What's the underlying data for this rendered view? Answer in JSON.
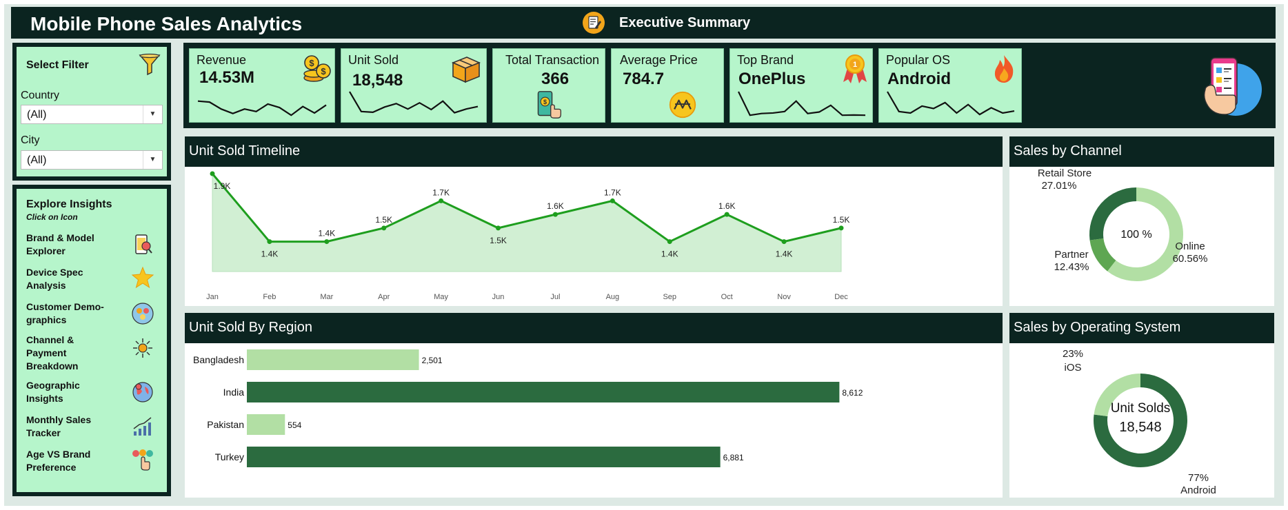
{
  "header": {
    "title": "Mobile Phone Sales Analytics",
    "nav_label": "Executive Summary",
    "icon": "report-icon"
  },
  "filters": {
    "title": "Select Filter",
    "icon": "funnel-icon",
    "country_label": "Country",
    "country_value": "(All)",
    "city_label": "City",
    "city_value": "(All)"
  },
  "insights": {
    "title": "Explore Insights",
    "subtitle": "Click on Icon",
    "items": [
      {
        "label": "Brand & Model Explorer",
        "icon": "phone-search-icon"
      },
      {
        "label": "Device Spec Analysis",
        "icon": "star-icon"
      },
      {
        "label": "Customer Demo-graphics",
        "icon": "people-icon"
      },
      {
        "label": "Channel & Payment Breakdown",
        "icon": "network-icon"
      },
      {
        "label": "Geographic Insights",
        "icon": "globe-pin-icon"
      },
      {
        "label": "Monthly Sales Tracker",
        "icon": "growth-chart-icon"
      },
      {
        "label": "Age VS Brand Preference",
        "icon": "touch-icon"
      }
    ]
  },
  "kpis": {
    "revenue": {
      "label": "Revenue",
      "value": "14.53M",
      "icon": "coins-icon",
      "spark": [
        0.62,
        0.58,
        0.3,
        0.12,
        0.3,
        0.2,
        0.5,
        0.36,
        0.05,
        0.4,
        0.14,
        0.46
      ]
    },
    "unit_sold": {
      "label": "Unit Sold",
      "value": "18,548",
      "icon": "box-icon",
      "spark": [
        1.0,
        0.2,
        0.17,
        0.38,
        0.52,
        0.3,
        0.55,
        0.28,
        0.62,
        0.15,
        0.3,
        0.4
      ]
    },
    "transactions": {
      "label": "Total Transaction",
      "value": "366",
      "icon": "mobile-payment-icon"
    },
    "avg_price": {
      "label": "Average Price",
      "value": "784.7",
      "icon": "price-coin-icon"
    },
    "top_brand": {
      "label": "Top Brand",
      "value": "OnePlus",
      "icon": "medal-icon",
      "spark": [
        1.0,
        0.05,
        0.12,
        0.14,
        0.2,
        0.62,
        0.12,
        0.18,
        0.45,
        0.05,
        0.06,
        0.05
      ]
    },
    "popular_os": {
      "label": "Popular OS",
      "value": "Android",
      "icon": "flame-icon",
      "spark": [
        1.0,
        0.2,
        0.14,
        0.42,
        0.32,
        0.56,
        0.14,
        0.48,
        0.08,
        0.35,
        0.14,
        0.22
      ]
    },
    "side_icon": "phone-app-icon"
  },
  "timeline": {
    "title": "Unit Sold  Timeline"
  },
  "region": {
    "title": "Unit Sold By Region"
  },
  "channel": {
    "title": "Sales by Channel",
    "center_label": "100 %"
  },
  "os": {
    "title": "Sales by Operating System",
    "center_label": "Unit Solds",
    "center_value": "18,548"
  },
  "colors": {
    "dark": "#0b2420",
    "panel_green": "#b6f5cb",
    "line_green": "#1e9e1e",
    "area_green": "#d1efd3",
    "bar_dark": "#2b6b3f",
    "bar_light": "#b2dfa4",
    "donut_mid": "#5ea652"
  },
  "chart_data": [
    {
      "type": "area",
      "title": "Unit Sold  Timeline",
      "categories": [
        "Jan",
        "Feb",
        "Mar",
        "Apr",
        "May",
        "Jun",
        "Jul",
        "Aug",
        "Sep",
        "Oct",
        "Nov",
        "Dec"
      ],
      "values": [
        1900,
        1400,
        1400,
        1500,
        1700,
        1500,
        1600,
        1700,
        1400,
        1600,
        1400,
        1500
      ],
      "labels": [
        "1.9K",
        "1.4K",
        "1.4K",
        "1.5K",
        "1.7K",
        "1.5K",
        "1.6K",
        "1.7K",
        "1.4K",
        "1.6K",
        "1.4K",
        "1.5K"
      ],
      "grid": false
    },
    {
      "type": "bar",
      "orientation": "horizontal",
      "title": "Unit Sold By Region",
      "categories": [
        "Bangladesh",
        "India",
        "Pakistan",
        "Turkey"
      ],
      "values": [
        2501,
        8612,
        554,
        6881
      ],
      "labels": [
        "2,501",
        "8,612",
        "554",
        "6,881"
      ],
      "colors": [
        "#b2dfa4",
        "#2b6b3f",
        "#b2dfa4",
        "#2b6b3f"
      ]
    },
    {
      "type": "pie",
      "style": "donut",
      "title": "Sales by Channel",
      "categories": [
        "Online",
        "Partner",
        "Retail Store"
      ],
      "values": [
        60.56,
        12.43,
        27.01
      ],
      "labels": [
        "60.56%",
        "12.43%",
        "27.01%"
      ],
      "colors": [
        "#b2dfa4",
        "#5ea652",
        "#2b6b3f"
      ]
    },
    {
      "type": "pie",
      "style": "donut",
      "title": "Sales by Operating System",
      "categories": [
        "iOS",
        "Android"
      ],
      "values": [
        23,
        77
      ],
      "labels": [
        "23%",
        "77%"
      ],
      "colors": [
        "#b2dfa4",
        "#2b6b3f"
      ]
    }
  ]
}
